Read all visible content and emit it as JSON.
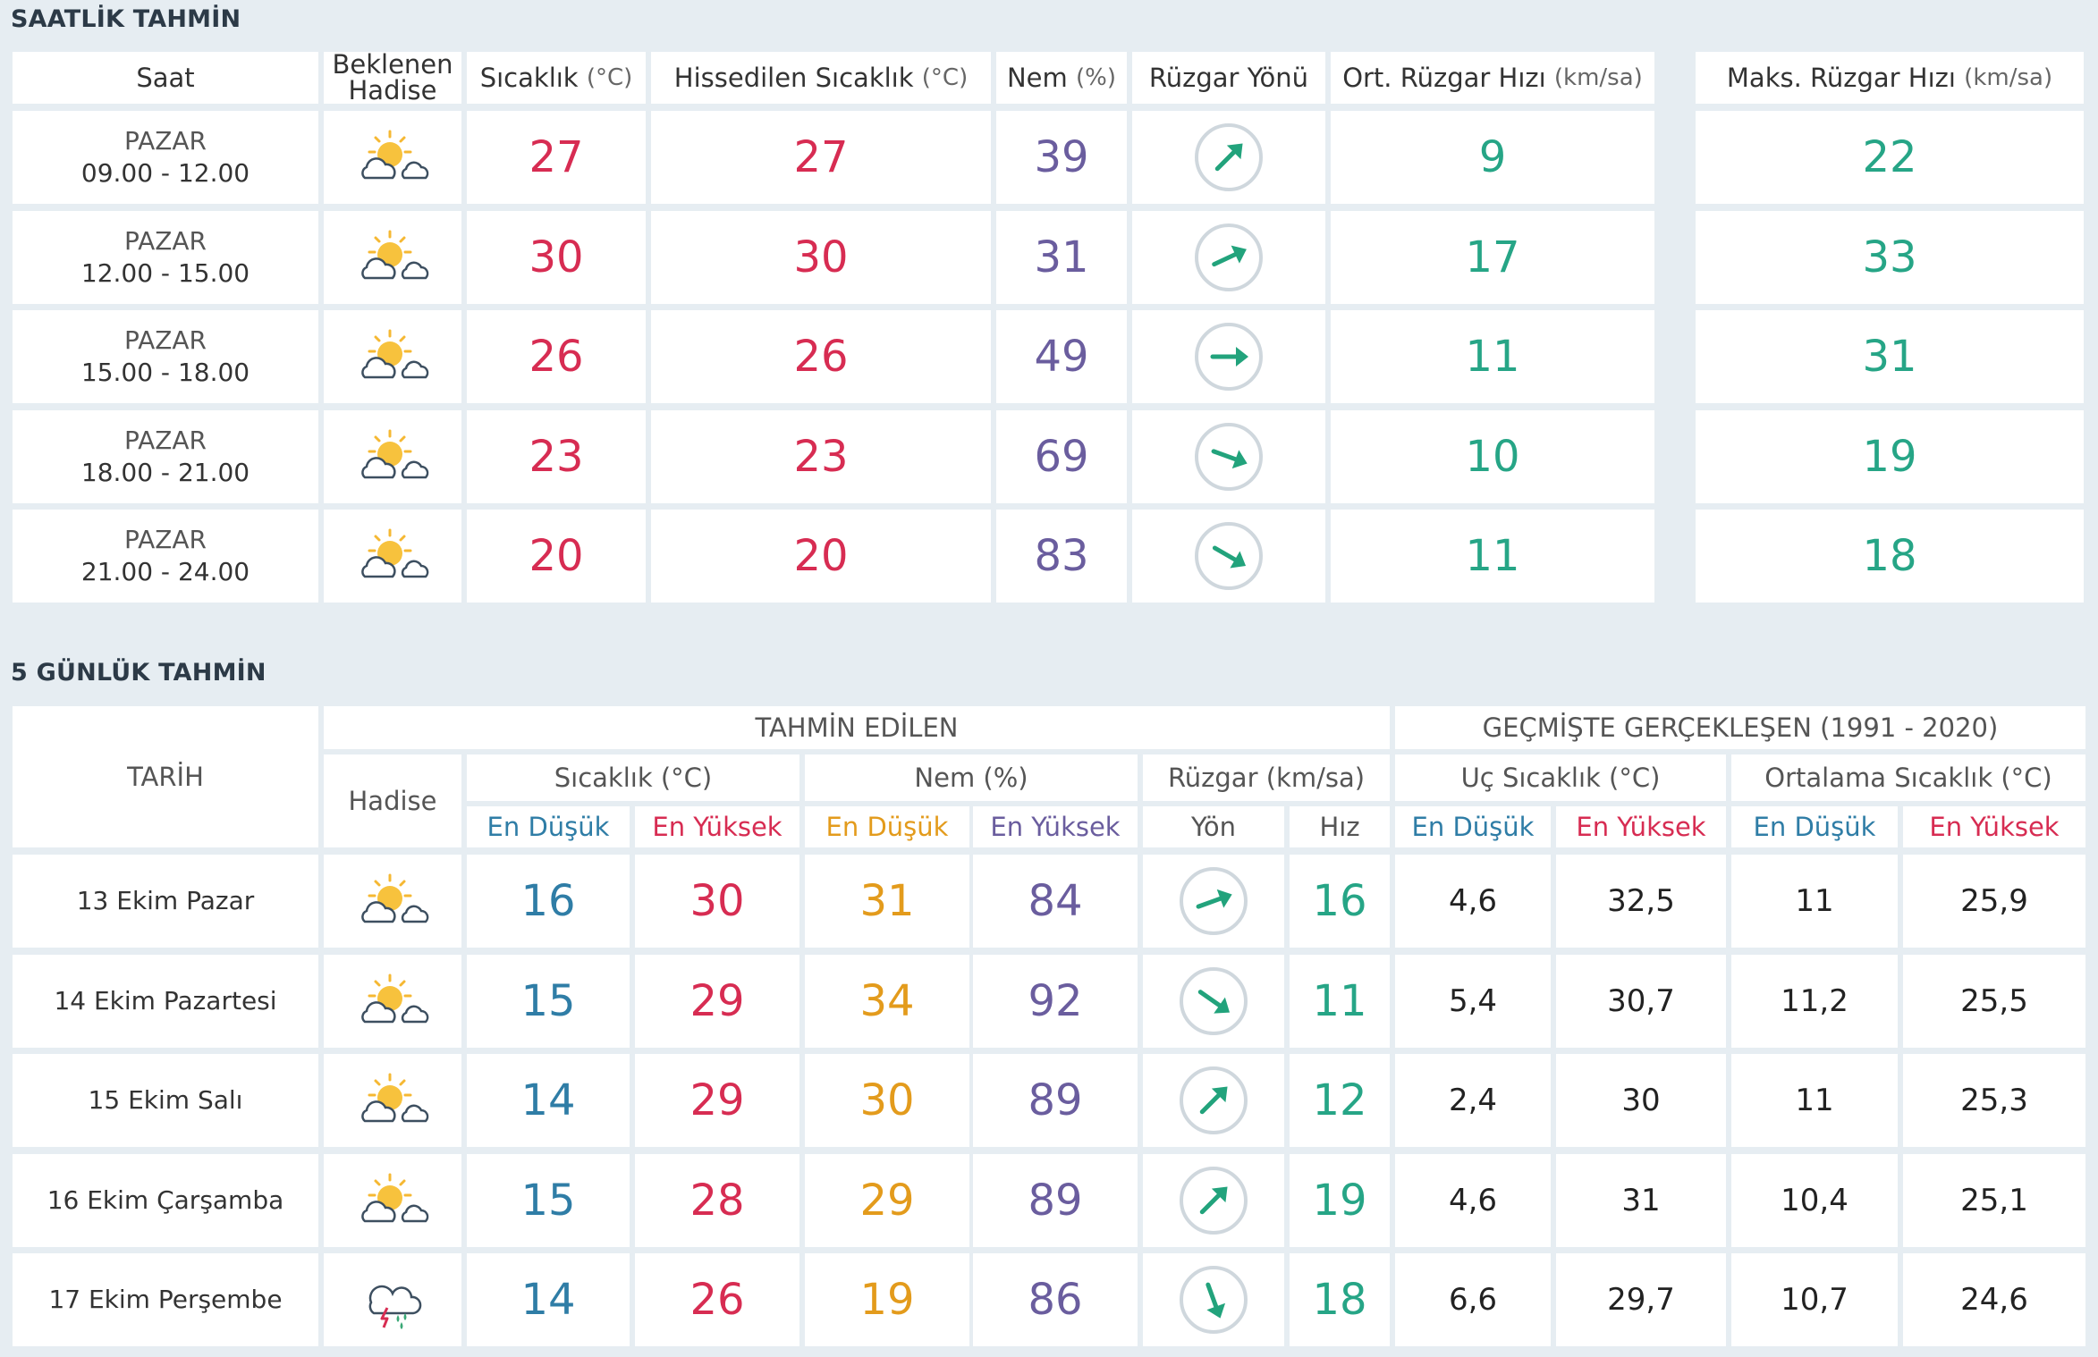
{
  "hourly": {
    "title": "SAATLİK TAHMİN",
    "headers": {
      "saat": "Saat",
      "hadise_1": "Beklenen",
      "hadise_2": "Hadise",
      "sicaklik": "Sıcaklık",
      "sicaklik_unit": "(°C)",
      "hissedilen": "Hissedilen Sıcaklık",
      "hissedilen_unit": "(°C)",
      "nem": "Nem",
      "nem_unit": "(%)",
      "ruzgar_yonu": "Rüzgar Yönü",
      "ort_ruzgar": "Ort. Rüzgar Hızı",
      "ort_ruzgar_unit": "(km/sa)",
      "maks_ruzgar": "Maks. Rüzgar Hızı",
      "maks_ruzgar_unit": "(km/sa)"
    },
    "rows": [
      {
        "day": "PAZAR",
        "time": "09.00 - 12.00",
        "icon": "partly-cloudy-icon",
        "temp": "27",
        "feels": "27",
        "humidity": "39",
        "wind_dir_deg": 45,
        "wind_avg": "9",
        "wind_max": "22"
      },
      {
        "day": "PAZAR",
        "time": "12.00 - 15.00",
        "icon": "partly-cloudy-icon",
        "temp": "30",
        "feels": "30",
        "humidity": "31",
        "wind_dir_deg": 65,
        "wind_avg": "17",
        "wind_max": "33"
      },
      {
        "day": "PAZAR",
        "time": "15.00 - 18.00",
        "icon": "partly-cloudy-icon",
        "temp": "26",
        "feels": "26",
        "humidity": "49",
        "wind_dir_deg": 90,
        "wind_avg": "11",
        "wind_max": "31"
      },
      {
        "day": "PAZAR",
        "time": "18.00 - 21.00",
        "icon": "partly-cloudy-icon",
        "temp": "23",
        "feels": "23",
        "humidity": "69",
        "wind_dir_deg": 110,
        "wind_avg": "10",
        "wind_max": "19"
      },
      {
        "day": "PAZAR",
        "time": "21.00 - 24.00",
        "icon": "partly-cloudy-icon",
        "temp": "20",
        "feels": "20",
        "humidity": "83",
        "wind_dir_deg": 120,
        "wind_avg": "11",
        "wind_max": "18"
      }
    ]
  },
  "daily": {
    "title": "5 GÜNLÜK TAHMİN",
    "headers": {
      "tarih": "TARİH",
      "tahmin_edilen": "TAHMİN EDİLEN",
      "gecmiste": "GEÇMİŞTE GERÇEKLEŞEN (1991 - 2020)",
      "hadise": "Hadise",
      "sicaklik": "Sıcaklık (°C)",
      "nem": "Nem (%)",
      "ruzgar": "Rüzgar (km/sa)",
      "uc_sicaklik": "Uç Sıcaklık (°C)",
      "ortalama_sicaklik": "Ortalama Sıcaklık (°C)",
      "en_dusuk": "En Düşük",
      "en_yuksek": "En Yüksek",
      "yon": "Yön",
      "hiz": "Hız"
    },
    "rows": [
      {
        "date": "13 Ekim Pazar",
        "icon": "partly-cloudy-icon",
        "t_min": "16",
        "t_max": "30",
        "h_min": "31",
        "h_max": "84",
        "wind_dir_deg": 70,
        "wind_speed": "16",
        "ext_min": "4,6",
        "ext_max": "32,5",
        "avg_min": "11",
        "avg_max": "25,9"
      },
      {
        "date": "14 Ekim Pazartesi",
        "icon": "partly-cloudy-icon",
        "t_min": "15",
        "t_max": "29",
        "h_min": "34",
        "h_max": "92",
        "wind_dir_deg": 125,
        "wind_speed": "11",
        "ext_min": "5,4",
        "ext_max": "30,7",
        "avg_min": "11,2",
        "avg_max": "25,5"
      },
      {
        "date": "15 Ekim Salı",
        "icon": "partly-cloudy-icon",
        "t_min": "14",
        "t_max": "29",
        "h_min": "30",
        "h_max": "89",
        "wind_dir_deg": 45,
        "wind_speed": "12",
        "ext_min": "2,4",
        "ext_max": "30",
        "avg_min": "11",
        "avg_max": "25,3"
      },
      {
        "date": "16 Ekim Çarşamba",
        "icon": "partly-cloudy-icon",
        "t_min": "15",
        "t_max": "28",
        "h_min": "29",
        "h_max": "89",
        "wind_dir_deg": 45,
        "wind_speed": "19",
        "ext_min": "4,6",
        "ext_max": "31",
        "avg_min": "10,4",
        "avg_max": "25,1"
      },
      {
        "date": "17 Ekim Perşembe",
        "icon": "thunder-rain-icon",
        "t_min": "14",
        "t_max": "26",
        "h_min": "19",
        "h_max": "86",
        "wind_dir_deg": 160,
        "wind_speed": "18",
        "ext_min": "6,6",
        "ext_max": "29,7",
        "avg_min": "10,7",
        "avg_max": "24,6"
      }
    ]
  }
}
